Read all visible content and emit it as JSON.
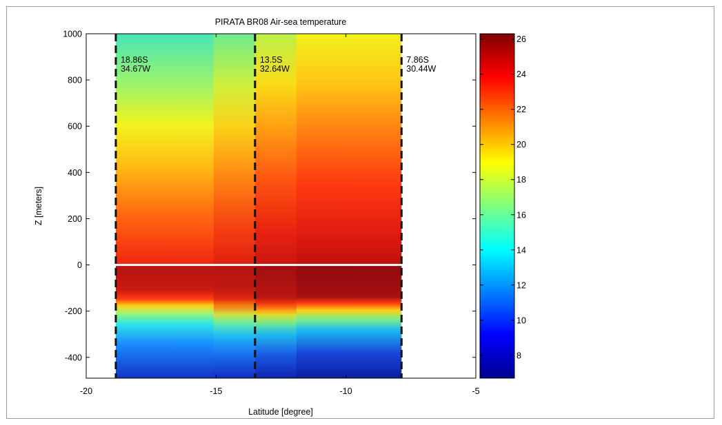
{
  "chart_data": {
    "type": "heatmap",
    "title": "PIRATA BR08 Air-sea temperature",
    "xlabel": "Latitude [degree]",
    "ylabel": "Z [meters]",
    "xlim": [
      -20,
      -5
    ],
    "ylim": [
      -490,
      1000
    ],
    "x_ticks": [
      -20,
      -15,
      -10,
      -5
    ],
    "y_ticks": [
      1000,
      800,
      600,
      400,
      200,
      0,
      -200,
      -400
    ],
    "data_x_range": [
      -18.86,
      -7.86
    ],
    "surface_line_z": 0,
    "colorbar": {
      "range": [
        6.7,
        26.3
      ],
      "ticks": [
        26,
        24,
        22,
        20,
        18,
        16,
        14,
        12,
        10,
        8
      ],
      "colormap": "jet"
    },
    "grid": false,
    "moorings": [
      {
        "lat": -18.86,
        "label_lat": "18.86S",
        "label_lon": "34.67W"
      },
      {
        "lat": -13.5,
        "label_lat": "13.5S",
        "label_lon": "32.64W"
      },
      {
        "lat": -7.86,
        "label_lat": "7.86S",
        "label_lon": "30.44W"
      }
    ]
  }
}
